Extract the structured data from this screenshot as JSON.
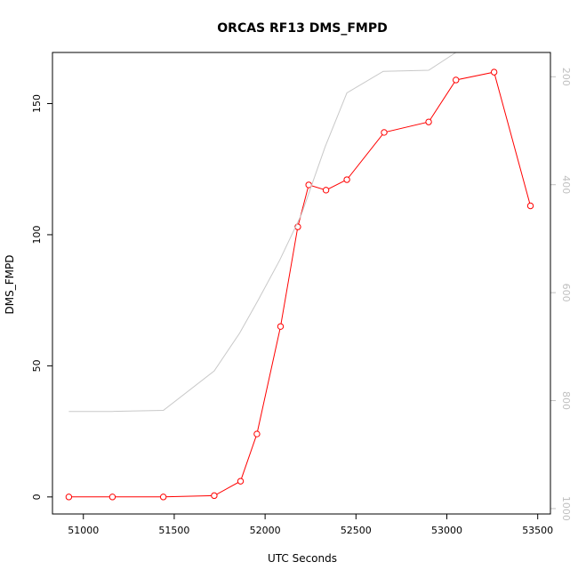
{
  "chart_data": {
    "type": "line",
    "title": "ORCAS RF13 DMS_FMPD",
    "xlabel": "UTC Seconds",
    "ylabel": "DMS_FMPD",
    "xlim": [
      50830,
      53570
    ],
    "ylim": [
      -6.5,
      169.5
    ],
    "xticks": [
      51000,
      51500,
      52000,
      52500,
      53000,
      53500
    ],
    "yticks": [
      0,
      50,
      100,
      150
    ],
    "y2lim": [
      1010,
      155
    ],
    "y2ticks": [
      200,
      400,
      600,
      800,
      1000
    ],
    "grid": false,
    "series": [
      {
        "color": "#ff0000",
        "marker": "circle",
        "axis": "left",
        "x": [
          50920,
          51160,
          51440,
          51720,
          51865,
          51955,
          52085,
          52180,
          52240,
          52335,
          52450,
          52655,
          52900,
          53050,
          53260,
          53460
        ],
        "y": [
          0,
          0,
          0,
          0.5,
          6,
          24,
          65,
          103,
          119,
          117,
          121,
          139,
          143,
          159,
          162,
          111
        ]
      },
      {
        "color": "#c8c8c8",
        "marker": "none",
        "axis": "right",
        "x": [
          50920,
          51160,
          51440,
          51720,
          51860,
          51960,
          52080,
          52200,
          52330,
          52450,
          52650,
          52900,
          53050
        ],
        "y": [
          820,
          820,
          818,
          745,
          675,
          615,
          540,
          455,
          330,
          230,
          190,
          188,
          155
        ]
      }
    ]
  }
}
